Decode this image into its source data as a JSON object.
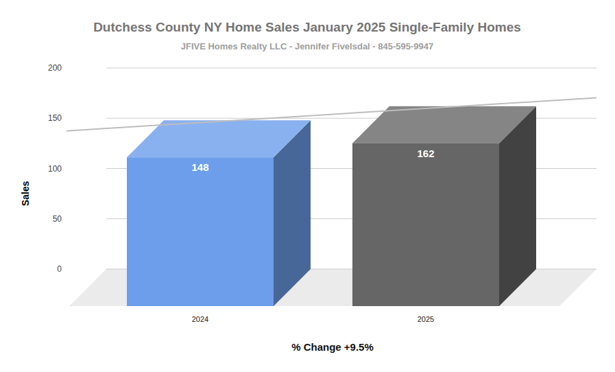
{
  "chart_data": {
    "type": "bar",
    "title": "Dutchess  County NY Home Sales January 2025 Single-Family Homes",
    "subtitle": "JFIVE Homes Realty LLC - Jennifer Fivelsdal - 845-595-9947",
    "y_label": "Sales",
    "annotation": "% Change +9.5%",
    "categories": [
      "2024",
      "2025"
    ],
    "values": [
      148,
      162
    ],
    "colors": [
      "#6d9eeb",
      "#666666"
    ],
    "ylim": [
      0,
      200
    ],
    "yticks": [
      0,
      50,
      100,
      150,
      200
    ],
    "grid": true,
    "data_labels": true
  }
}
